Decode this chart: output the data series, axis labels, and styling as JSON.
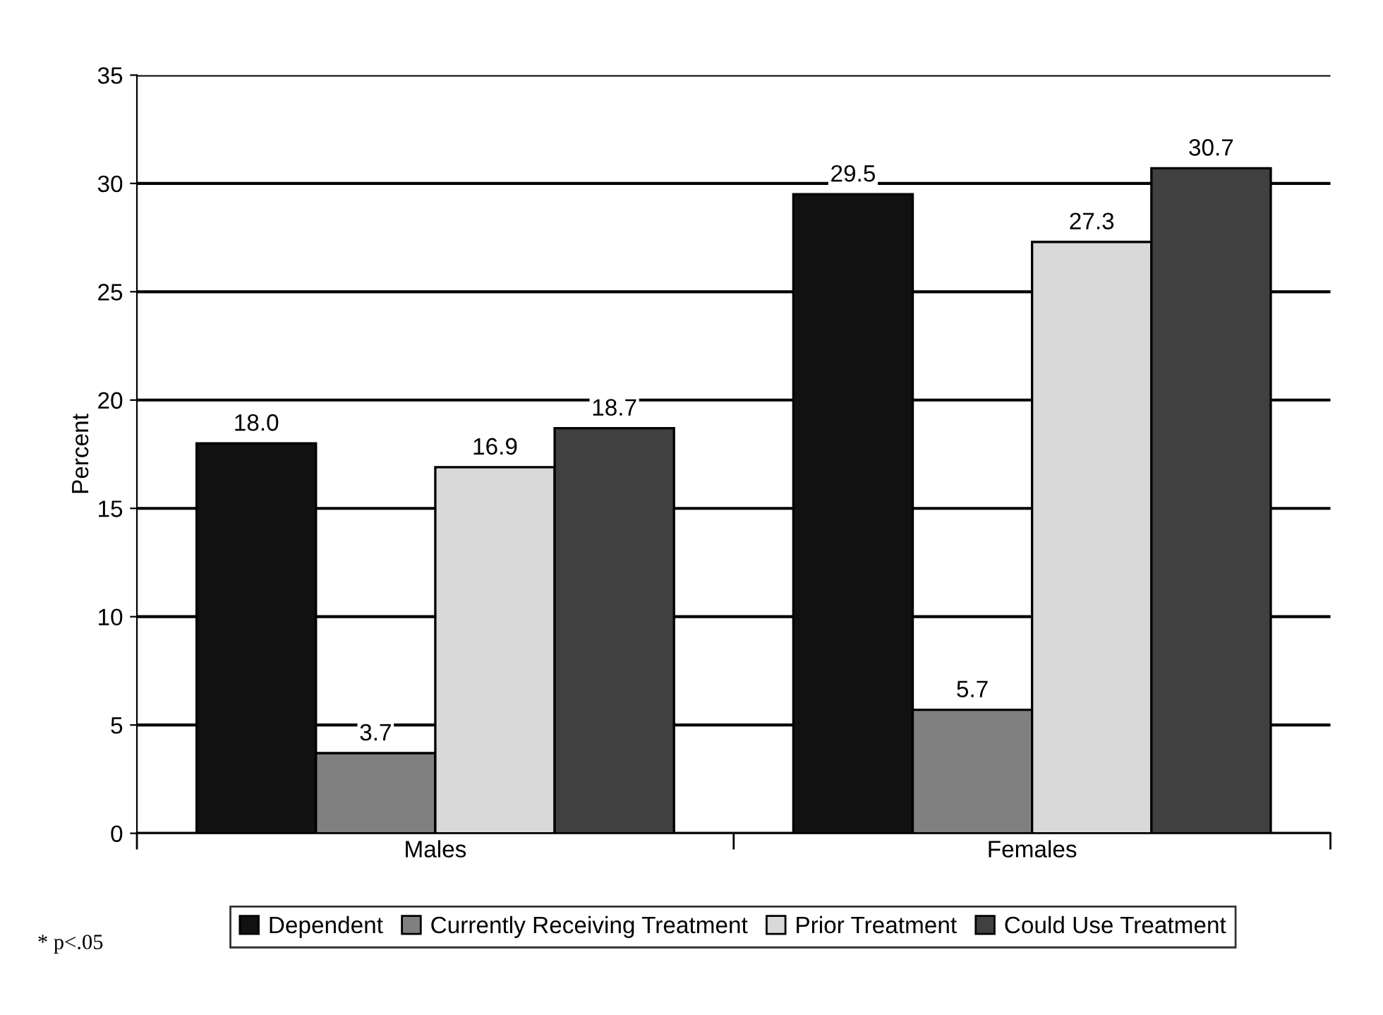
{
  "chart_data": {
    "type": "bar",
    "ylabel": "Percent",
    "categories": [
      "Males",
      "Females"
    ],
    "series": [
      {
        "name": "Dependent",
        "color": "#111111",
        "values": [
          18.0,
          29.5
        ],
        "value_labels": [
          "18.0",
          "29.5"
        ]
      },
      {
        "name": "Currently Receiving Treatment",
        "color": "#808080",
        "values": [
          3.7,
          5.7
        ],
        "value_labels": [
          "3.7",
          "5.7"
        ]
      },
      {
        "name": "Prior Treatment",
        "color": "#d9d9d9",
        "values": [
          16.9,
          27.3
        ],
        "value_labels": [
          "16.9",
          "27.3"
        ]
      },
      {
        "name": "Could Use Treatment",
        "color": "#404040",
        "values": [
          18.7,
          30.7
        ],
        "value_labels": [
          "18.7",
          "30.7"
        ]
      }
    ],
    "ylim": [
      0,
      35
    ],
    "yticks": [
      0,
      5,
      10,
      15,
      20,
      25,
      30,
      35
    ],
    "grid": "y",
    "legend": "bottom",
    "annotations": [
      "* p<.05"
    ]
  }
}
